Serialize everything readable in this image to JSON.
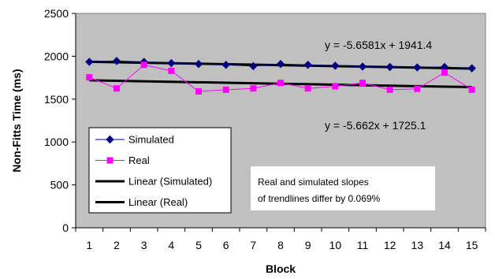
{
  "chart_data": {
    "type": "line",
    "xlabel": "Block",
    "ylabel": "Non-Fitts Time (ms)",
    "x": [
      1,
      2,
      3,
      4,
      5,
      6,
      7,
      8,
      9,
      10,
      11,
      12,
      13,
      14,
      15
    ],
    "ylim": [
      0,
      2500
    ],
    "yticks": [
      0,
      500,
      1000,
      1500,
      2000,
      2500
    ],
    "grid": false,
    "legend_position": "bottom-left",
    "plot_background": "#C0C0C0",
    "series": [
      {
        "name": "Simulated",
        "color": "#000080",
        "marker": "diamond",
        "values": [
          1935,
          1945,
          1935,
          1920,
          1910,
          1900,
          1885,
          1910,
          1900,
          1890,
          1880,
          1875,
          1870,
          1875,
          1860
        ]
      },
      {
        "name": "Real",
        "color": "#FF00FF",
        "marker": "square",
        "values": [
          1755,
          1625,
          1900,
          1830,
          1590,
          1610,
          1625,
          1690,
          1625,
          1650,
          1690,
          1610,
          1620,
          1810,
          1610
        ]
      },
      {
        "name": "Linear (Simulated)",
        "color": "#000000",
        "trendline": true,
        "slope": -5.6581,
        "intercept": 1941.4
      },
      {
        "name": "Linear (Real)",
        "color": "#000000",
        "trendline": true,
        "slope": -5.662,
        "intercept": 1725.1
      }
    ],
    "annotations": {
      "eq_simulated": "y = -5.6581x + 1941.4",
      "eq_real": "y = -5.662x + 1725.1",
      "note_line1": "Real and simulated slopes",
      "note_line2": "of trendlines differ by 0.069%"
    }
  }
}
